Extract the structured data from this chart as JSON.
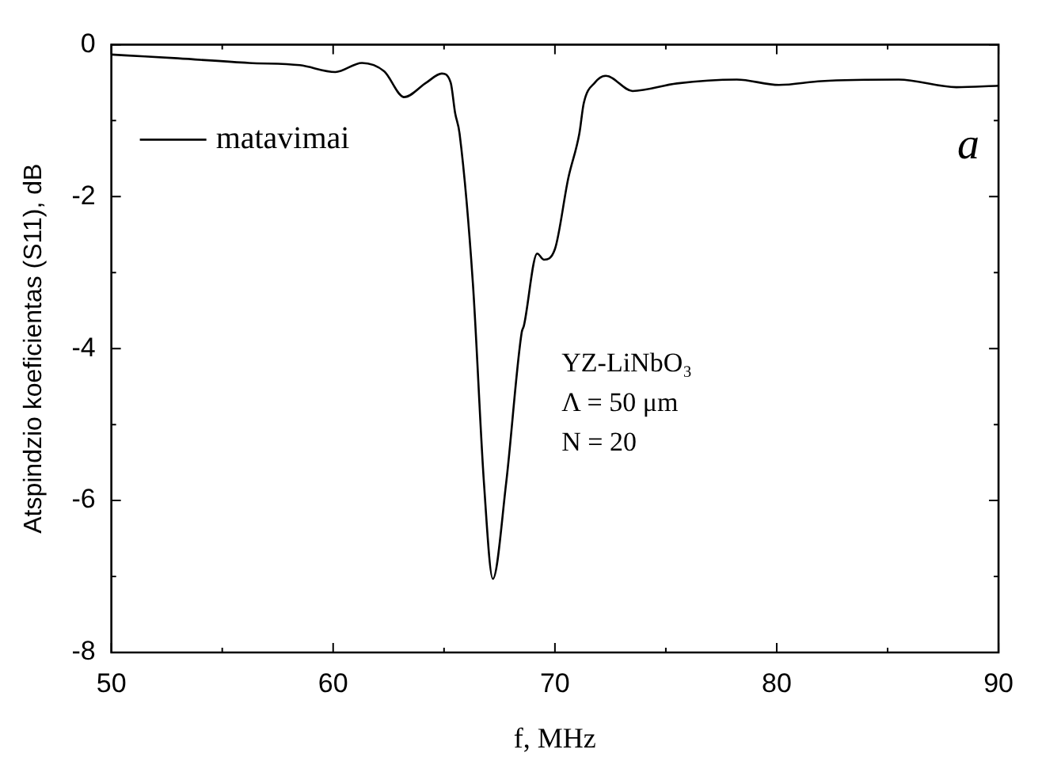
{
  "chart_data": {
    "type": "line",
    "xlabel": "f, MHz",
    "ylabel": "Atspindzio koeficientas (S11), dB",
    "xlim": [
      50,
      90
    ],
    "xticks": [
      50,
      60,
      70,
      80,
      90
    ],
    "ylim": [
      -8,
      0
    ],
    "yticks": [
      -8,
      -6,
      -4,
      -2,
      0
    ],
    "grid": false,
    "legend": "top left",
    "marker": "none",
    "line_style": "solid",
    "annotations": [
      "a",
      "YZ-LiNbO₃",
      "Λ = 50 μm",
      "N = 20"
    ],
    "series": [
      {
        "name": "matavimai",
        "color": "#000000",
        "x": [
          50,
          50.6,
          53,
          56.2,
          58.5,
          60.1,
          61.3,
          62.3,
          63.2,
          64.2,
          64.9,
          65.3,
          65.5,
          65.7,
          66.3,
          66.8,
          67.2,
          67.8,
          68.5,
          68.6,
          69.2,
          69.5,
          70.0,
          70.6,
          71.1,
          71.3,
          71.8,
          72.3,
          73.5,
          75.5,
          78.2,
          80.1,
          82,
          85.5,
          88.1,
          90
        ],
        "values": [
          -0.13,
          -0.14,
          -0.18,
          -0.24,
          -0.27,
          -0.36,
          -0.24,
          -0.35,
          -0.69,
          -0.5,
          -0.38,
          -0.5,
          -0.9,
          -1.17,
          -3.14,
          -5.77,
          -7.03,
          -5.77,
          -3.79,
          -3.7,
          -2.75,
          -2.83,
          -2.69,
          -1.76,
          -1.17,
          -0.77,
          -0.5,
          -0.41,
          -0.61,
          -0.51,
          -0.46,
          -0.53,
          -0.48,
          -0.46,
          -0.56,
          -0.54
        ]
      }
    ]
  }
}
